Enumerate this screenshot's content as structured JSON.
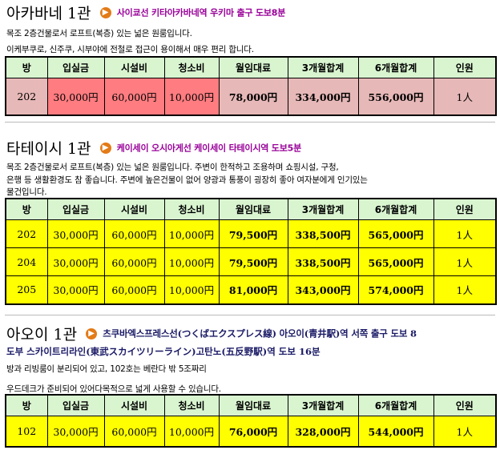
{
  "table_headers": [
    "방",
    "입실금",
    "시설비",
    "청소비",
    "월임대료",
    "3개월합계",
    "6개월합계",
    "인원"
  ],
  "buildings": [
    {
      "name": "아카바네 1관",
      "access": "사이쿄선 키타아카바네역 우키마 출구 도보8분",
      "description": [
        "목조 2층건물로서 로프트(복층) 있는 넓은 원룸입니다.",
        "이케부쿠로, 신주쿠, 시부야에 전철로 접근이 용이해서 매우 편리 합니다."
      ],
      "rows": [
        [
          "202",
          "30,000円",
          "60,000円",
          "10,000円",
          "78,000円",
          "334,000円",
          "556,000円",
          "1人"
        ]
      ]
    },
    {
      "name": "타테이시 1관",
      "access": "케이세이 오시아게선 케이세이 타테이시역 도보5분",
      "description": [
        "목조 2층건물로서 로프트(복층) 있는 넓은 원룸입니다. 주변이 한적하고 조용하며 쇼핑시설, 구청,",
        "은행 등 생활환경도 참 좋습니다. 주변에 높은건물이 없어 양광과 통풍이 굉장히 좋아 여자분에게 인기있는",
        "물건입니다."
      ],
      "rows": [
        [
          "202",
          "30,000円",
          "60,000円",
          "10,000円",
          "79,500円",
          "338,500円",
          "565,000円",
          "1人"
        ],
        [
          "204",
          "30,000円",
          "60,000円",
          "10,000円",
          "79,500円",
          "338,500円",
          "565,000円",
          "1人"
        ],
        [
          "205",
          "30,000円",
          "60,000円",
          "10,000円",
          "81,000円",
          "343,000円",
          "574,000円",
          "1人"
        ]
      ]
    },
    {
      "name": "아오이 1관",
      "access": "츠쿠바엑스프레스선(つくばエクスプレス線) 아오이(青井駅)역 서쪽 출구 도보 8",
      "access_line2": "도부 스카이트리라인(東武スカイツリーライン)고탄노(五反野駅)역 도보 16분",
      "description": [
        "방과 리빙룸이 분리되어 있고, 102호는 베란다 밖 5조짜리",
        "우드데크가 준비되어 있어다목적으로 넓게 사용할 수 있습니다."
      ],
      "rows": [
        [
          "102",
          "30,000円",
          "60,000円",
          "10,000円",
          "76,000円",
          "328,000円",
          "544,000円",
          "1人"
        ]
      ]
    }
  ]
}
